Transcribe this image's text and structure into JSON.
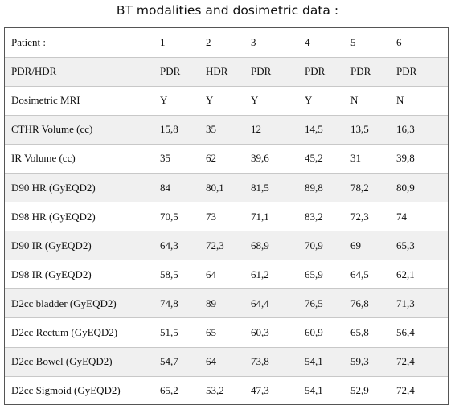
{
  "caption": "BT modalities and dosimetric data :",
  "table": {
    "rows": [
      {
        "label": "Patient :",
        "values": [
          "1",
          "2",
          "3",
          "4",
          "5",
          "6"
        ]
      },
      {
        "label": "PDR/HDR",
        "values": [
          "PDR",
          "HDR",
          "PDR",
          "PDR",
          "PDR",
          "PDR"
        ]
      },
      {
        "label": "Dosimetric MRI",
        "values": [
          "Y",
          "Y",
          "Y",
          "Y",
          "N",
          "N"
        ]
      },
      {
        "label": "CTHR Volume (cc)",
        "values": [
          "15,8",
          "35",
          "12",
          "14,5",
          "13,5",
          "16,3"
        ]
      },
      {
        "label": "IR Volume (cc)",
        "values": [
          "35",
          "62",
          "39,6",
          "45,2",
          "31",
          "39,8"
        ]
      },
      {
        "label": "D90 HR (GyEQD2)",
        "values": [
          "84",
          "80,1",
          "81,5",
          "89,8",
          "78,2",
          "80,9"
        ]
      },
      {
        "label": "D98 HR (GyEQD2)",
        "values": [
          "70,5",
          "73",
          "71,1",
          "83,2",
          "72,3",
          "74"
        ]
      },
      {
        "label": "D90 IR (GyEQD2)",
        "values": [
          "64,3",
          "72,3",
          "68,9",
          "70,9",
          "69",
          "65,3"
        ]
      },
      {
        "label": "D98 IR (GyEQD2)",
        "values": [
          "58,5",
          "64",
          "61,2",
          "65,9",
          "64,5",
          "62,1"
        ]
      },
      {
        "label": "D2cc bladder (GyEQD2)",
        "values": [
          "74,8",
          "89",
          "64,4",
          "76,5",
          "76,8",
          "71,3"
        ]
      },
      {
        "label": "D2cc Rectum (GyEQD2)",
        "values": [
          "51,5",
          "65",
          "60,3",
          "60,9",
          "65,8",
          "56,4"
        ]
      },
      {
        "label": "D2cc Bowel (GyEQD2)",
        "values": [
          "54,7",
          "64",
          "73,8",
          "54,1",
          "59,3",
          "72,4"
        ]
      },
      {
        "label": "D2cc Sigmoid (GyEQD2)",
        "values": [
          "65,2",
          "53,2",
          "47,3",
          "54,1",
          "52,9",
          "72,4"
        ]
      }
    ]
  }
}
